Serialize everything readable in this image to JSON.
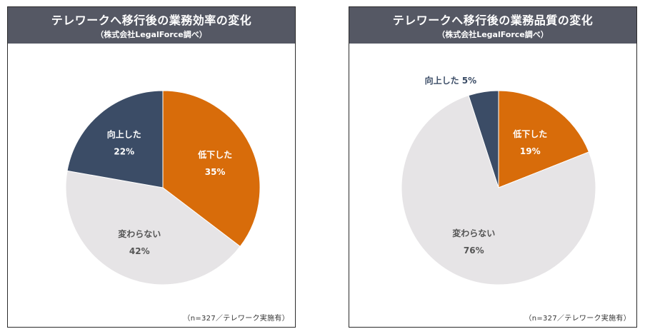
{
  "colors": {
    "header_bg": "#555864",
    "decreased": "#d86c0a",
    "unchanged": "#e6e4e6",
    "improved": "#3b4c66"
  },
  "chart_data": [
    {
      "type": "pie",
      "title": "テレワークへ移行後の業務効率の変化",
      "subtitle": "（株式会社LegalForce調べ）",
      "note": "（n=327／テレワーク実施有）",
      "slices": [
        {
          "label": "低下した",
          "value": 35,
          "display": "35%",
          "color": "#d86c0a"
        },
        {
          "label": "変わらない",
          "value": 42,
          "display": "42%",
          "color": "#e6e4e6"
        },
        {
          "label": "向上した",
          "value": 22,
          "display": "22%",
          "color": "#3b4c66"
        }
      ]
    },
    {
      "type": "pie",
      "title": "テレワークへ移行後の業務品質の変化",
      "subtitle": "（株式会社LegalForce調べ）",
      "note": "（n=327／テレワーク実施有）",
      "slices": [
        {
          "label": "低下した",
          "value": 19,
          "display": "19%",
          "color": "#d86c0a"
        },
        {
          "label": "変わらない",
          "value": 76,
          "display": "76%",
          "color": "#e6e4e6"
        },
        {
          "label": "向上した",
          "value": 5,
          "display": "5%",
          "color": "#3b4c66"
        }
      ]
    }
  ]
}
